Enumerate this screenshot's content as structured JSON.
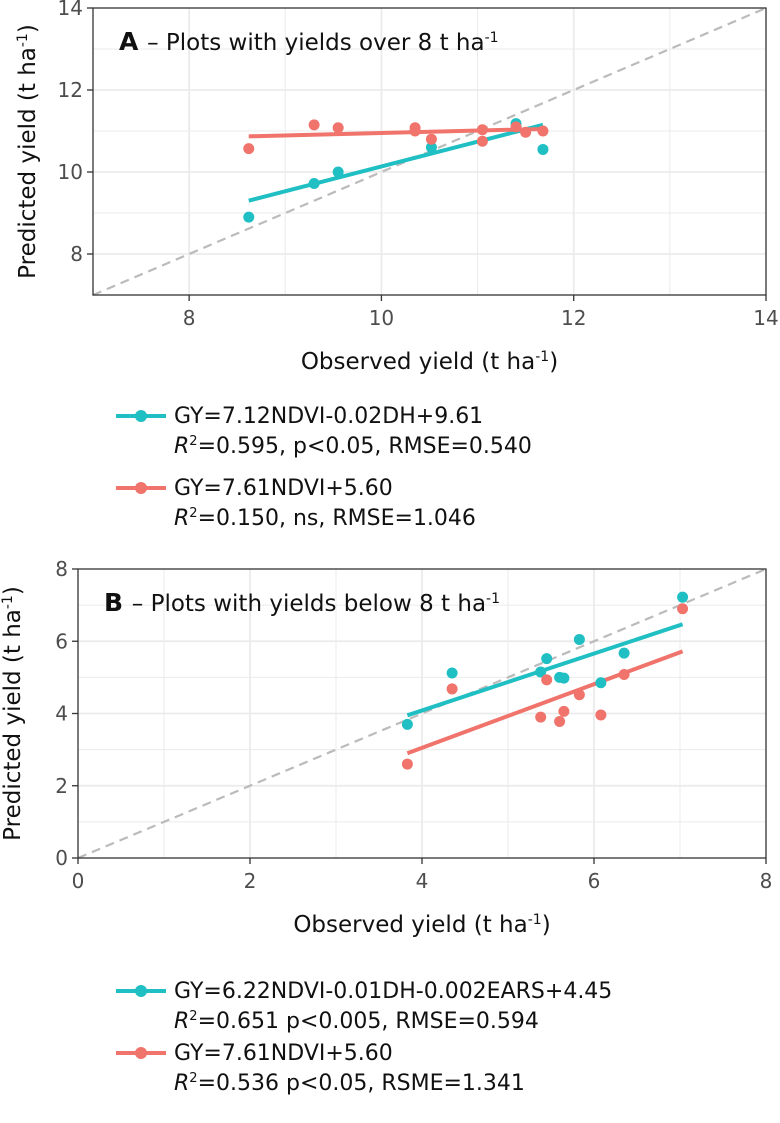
{
  "colors": {
    "cyan": "#1fbfc3",
    "salmon": "#f0736c",
    "grid": "#ebebeb",
    "axis": "#333333",
    "identity": "#bbbbbb"
  },
  "chart_data": [
    {
      "type": "scatter",
      "panel": "A",
      "title_letter": "A",
      "title_text": "– Plots with yields over 8 t ha",
      "title_sup": "-1",
      "xlabel": "Observed yield (t ha",
      "xlabel_sup": "-1",
      "ylabel": "Predicted yield (t ha",
      "ylabel_sup": "-1",
      "xlim": [
        7,
        14
      ],
      "ylim": [
        7,
        14
      ],
      "xticks": [
        8,
        10,
        12,
        14
      ],
      "yticks": [
        8,
        10,
        12,
        14
      ],
      "identity_line": true,
      "series": [
        {
          "name": "cyan",
          "color": "#1fbfc3",
          "points": [
            [
              8.62,
              8.9
            ],
            [
              9.3,
              9.72
            ],
            [
              9.55,
              10.0
            ],
            [
              10.52,
              10.6
            ],
            [
              11.4,
              11.18
            ],
            [
              11.68,
              10.55
            ]
          ],
          "fit": [
            [
              8.62,
              9.3
            ],
            [
              11.68,
              11.15
            ]
          ]
        },
        {
          "name": "salmon",
          "color": "#f0736c",
          "points": [
            [
              8.62,
              10.57
            ],
            [
              9.3,
              11.15
            ],
            [
              9.55,
              11.08
            ],
            [
              10.35,
              11.08
            ],
            [
              10.35,
              11.0
            ],
            [
              10.52,
              10.8
            ],
            [
              11.05,
              11.03
            ],
            [
              11.05,
              10.75
            ],
            [
              11.4,
              11.1
            ],
            [
              11.5,
              10.97
            ],
            [
              11.68,
              11.0
            ]
          ],
          "fit": [
            [
              8.62,
              10.87
            ],
            [
              11.68,
              11.05
            ]
          ]
        }
      ],
      "legend": [
        {
          "color": "#1fbfc3",
          "equation": "GY=7.12NDVI-0.02DH+9.61",
          "r": "R",
          "r_sup": "2",
          "stats": "=0.595, p<0.05, RMSE=0.540"
        },
        {
          "color": "#f0736c",
          "equation": "GY=7.61NDVI+5.60",
          "r": "R",
          "r_sup": "2",
          "stats": "=0.150, ns, RMSE=1.046"
        }
      ]
    },
    {
      "type": "scatter",
      "panel": "B",
      "title_letter": "B",
      "title_text": "– Plots with yields below 8 t ha",
      "title_sup": "-1",
      "xlabel": "Observed yield (t ha",
      "xlabel_sup": "-1",
      "ylabel": "Predicted yield (t ha",
      "ylabel_sup": "-1",
      "xlim": [
        0,
        8
      ],
      "ylim": [
        0,
        8
      ],
      "xticks": [
        0,
        2,
        4,
        6,
        8
      ],
      "yticks": [
        0,
        2,
        4,
        6,
        8
      ],
      "identity_line": true,
      "series": [
        {
          "name": "cyan",
          "color": "#1fbfc3",
          "points": [
            [
              3.83,
              3.7
            ],
            [
              4.35,
              5.12
            ],
            [
              5.38,
              5.15
            ],
            [
              5.45,
              5.52
            ],
            [
              5.6,
              5.0
            ],
            [
              5.65,
              4.98
            ],
            [
              5.83,
              6.05
            ],
            [
              6.08,
              4.85
            ],
            [
              6.35,
              5.67
            ],
            [
              7.03,
              7.22
            ]
          ],
          "fit": [
            [
              3.83,
              3.95
            ],
            [
              7.03,
              6.47
            ]
          ]
        },
        {
          "name": "salmon",
          "color": "#f0736c",
          "points": [
            [
              3.83,
              2.6
            ],
            [
              4.35,
              4.68
            ],
            [
              5.38,
              3.9
            ],
            [
              5.45,
              4.93
            ],
            [
              5.6,
              3.78
            ],
            [
              5.65,
              4.06
            ],
            [
              5.83,
              4.52
            ],
            [
              6.08,
              3.96
            ],
            [
              6.35,
              5.08
            ],
            [
              7.03,
              6.9
            ]
          ],
          "fit": [
            [
              3.83,
              2.9
            ],
            [
              7.03,
              5.72
            ]
          ]
        }
      ],
      "legend": [
        {
          "color": "#1fbfc3",
          "equation": "GY=6.22NDVI-0.01DH-0.002EARS+4.45",
          "r": "R",
          "r_sup": "2",
          "stats": "=0.651 p<0.005, RMSE=0.594"
        },
        {
          "color": "#f0736c",
          "equation": "GY=7.61NDVI+5.60",
          "r": "R",
          "r_sup": "2",
          "stats": "=0.536 p<0.05, RSME=1.341"
        }
      ]
    }
  ]
}
